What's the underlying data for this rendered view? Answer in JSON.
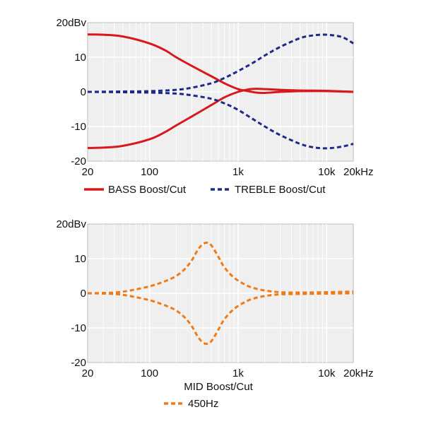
{
  "colors": {
    "bass": "#d7191c",
    "treble": "#1f2a86",
    "mid": "#f07a16",
    "plot_bg": "#efeff0",
    "grid": "#ffffff",
    "frame": "#bcbcbc"
  },
  "chart_data": [
    {
      "type": "line",
      "title": "",
      "xlabel": "",
      "ylabel": "",
      "x_scale": "log",
      "xlim": [
        20,
        20000
      ],
      "ylim": [
        -20,
        20
      ],
      "grid": true,
      "x_ticks": [
        20,
        100,
        1000,
        10000,
        20000
      ],
      "x_tick_labels": [
        "20",
        "100",
        "1k",
        "10k",
        "20kHz"
      ],
      "y_ticks": [
        20,
        10,
        0,
        -10,
        -20
      ],
      "y_tick_labels": [
        "20dBv",
        "10",
        "0",
        "-10",
        "-20"
      ],
      "legend": {
        "placement": "bottom",
        "entries": [
          {
            "label": "BASS Boost/Cut",
            "style": "solid",
            "color_key": "bass"
          },
          {
            "label": "TREBLE Boost/Cut",
            "style": "dashed",
            "color_key": "treble"
          }
        ]
      },
      "series": [
        {
          "name": "BASS Boost/Cut",
          "legend": "BASS Boost/Cut",
          "style": "solid",
          "color_key": "bass",
          "x": [
            20,
            30,
            50,
            100,
            150,
            200,
            300,
            500,
            700,
            1000,
            1300,
            1600,
            2000,
            3000,
            5000,
            10000,
            20000
          ],
          "y": [
            16.6,
            16.5,
            16.0,
            14.0,
            12.0,
            10.0,
            7.5,
            4.5,
            2.5,
            0.8,
            0.2,
            -0.2,
            -0.3,
            0.0,
            0.2,
            0.2,
            0.0
          ]
        },
        {
          "style": "solid",
          "color_key": "bass",
          "x": [
            20,
            30,
            50,
            100,
            150,
            200,
            300,
            500,
            700,
            1000,
            1300,
            1600,
            2000,
            3000,
            5000,
            10000,
            20000
          ],
          "y": [
            -16.2,
            -16.1,
            -15.6,
            -13.7,
            -11.6,
            -9.7,
            -7.1,
            -3.8,
            -1.6,
            0.0,
            0.7,
            0.9,
            0.8,
            0.6,
            0.4,
            0.3,
            0.0
          ]
        },
        {
          "name": "TREBLE Boost/Cut",
          "legend": "TREBLE Boost/Cut",
          "style": "dashed",
          "color_key": "treble",
          "x": [
            20,
            50,
            100,
            200,
            300,
            500,
            700,
            1000,
            1500,
            2000,
            3000,
            5000,
            7000,
            10000,
            15000,
            20000
          ],
          "y": [
            0.0,
            0.1,
            0.2,
            0.6,
            1.2,
            2.5,
            4.0,
            6.0,
            8.5,
            10.5,
            13.0,
            15.5,
            16.3,
            16.5,
            15.8,
            14.0
          ]
        },
        {
          "style": "dashed",
          "color_key": "treble",
          "x": [
            20,
            50,
            100,
            200,
            300,
            500,
            700,
            1000,
            1500,
            2000,
            3000,
            5000,
            7000,
            10000,
            15000,
            20000
          ],
          "y": [
            0.0,
            -0.1,
            -0.2,
            -0.5,
            -1.0,
            -2.0,
            -3.3,
            -5.2,
            -8.0,
            -10.0,
            -12.5,
            -15.0,
            -16.0,
            -16.3,
            -15.8,
            -15.0
          ]
        }
      ]
    },
    {
      "type": "line",
      "title": "MID Boost/Cut",
      "xlabel": "",
      "ylabel": "",
      "x_scale": "log",
      "xlim": [
        20,
        20000
      ],
      "ylim": [
        -20,
        20
      ],
      "grid": true,
      "x_ticks": [
        20,
        100,
        1000,
        10000,
        20000
      ],
      "x_tick_labels": [
        "20",
        "100",
        "1k",
        "10k",
        "20kHz"
      ],
      "y_ticks": [
        20,
        10,
        0,
        -10,
        -20
      ],
      "y_tick_labels": [
        "20dBv",
        "10",
        "0",
        "-10",
        "-20"
      ],
      "legend": {
        "placement": "bottom",
        "entries": [
          {
            "label": "450Hz",
            "style": "dashed",
            "color_key": "mid"
          }
        ]
      },
      "series": [
        {
          "name": "450Hz",
          "legend": "450Hz",
          "style": "dashed",
          "color_key": "mid",
          "x": [
            20,
            40,
            60,
            100,
            150,
            200,
            250,
            300,
            350,
            400,
            450,
            500,
            600,
            700,
            900,
            1200,
            1500,
            2000,
            3000,
            5000,
            10000,
            20000
          ],
          "y": [
            0.0,
            0.2,
            0.8,
            2.0,
            3.5,
            5.0,
            7.0,
            9.5,
            12.5,
            14.2,
            14.6,
            13.8,
            10.5,
            7.5,
            4.5,
            2.5,
            1.5,
            0.8,
            0.3,
            0.2,
            0.3,
            0.5
          ]
        },
        {
          "style": "dashed",
          "color_key": "mid",
          "x": [
            20,
            40,
            60,
            100,
            150,
            200,
            250,
            300,
            350,
            400,
            450,
            500,
            600,
            700,
            900,
            1200,
            1500,
            2000,
            3000,
            5000,
            10000,
            20000
          ],
          "y": [
            0.0,
            -0.2,
            -0.8,
            -2.0,
            -3.5,
            -5.0,
            -7.0,
            -9.5,
            -12.5,
            -14.2,
            -14.6,
            -13.8,
            -10.5,
            -7.5,
            -4.5,
            -2.5,
            -1.5,
            -0.8,
            -0.3,
            -0.2,
            -0.1,
            0.0
          ]
        }
      ]
    }
  ]
}
